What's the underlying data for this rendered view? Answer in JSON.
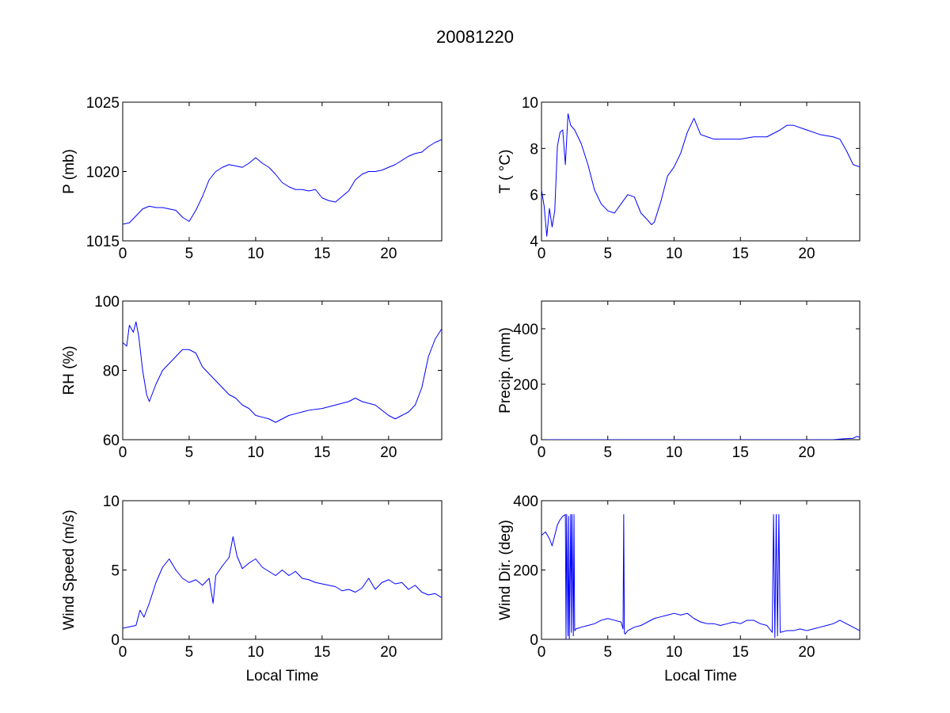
{
  "title": "20081220",
  "colors": {
    "series": "#0000ff",
    "axes": "#000000",
    "background": "#ffffff"
  },
  "chart_data": [
    {
      "type": "line",
      "panel": "top-left",
      "title": "",
      "xlabel": "",
      "ylabel": "P (mb)",
      "xlim": [
        0,
        24
      ],
      "ylim": [
        1015,
        1025
      ],
      "xticks": [
        0,
        5,
        10,
        15,
        20
      ],
      "xtick_labels": [
        "0",
        "5",
        "10",
        "15",
        "20"
      ],
      "yticks": [
        1015,
        1020,
        1025
      ],
      "ytick_labels": [
        "1015",
        "1020",
        "1025"
      ],
      "series": [
        {
          "name": "P",
          "x": [
            0,
            0.5,
            1,
            1.5,
            2,
            2.5,
            3,
            3.5,
            4,
            4.5,
            5,
            5.5,
            6,
            6.5,
            7,
            7.5,
            8,
            8.5,
            9,
            9.5,
            10,
            10.5,
            11,
            11.5,
            12,
            12.5,
            13,
            13.5,
            14,
            14.5,
            15,
            15.5,
            16,
            16.5,
            17,
            17.5,
            18,
            18.5,
            19,
            19.5,
            20,
            20.5,
            21,
            21.5,
            22,
            22.5,
            23,
            23.5,
            24
          ],
          "y": [
            1016.2,
            1016.3,
            1016.8,
            1017.3,
            1017.5,
            1017.4,
            1017.4,
            1017.3,
            1017.2,
            1016.7,
            1016.4,
            1017.2,
            1018.2,
            1019.4,
            1020.0,
            1020.3,
            1020.5,
            1020.4,
            1020.3,
            1020.6,
            1021.0,
            1020.6,
            1020.3,
            1019.8,
            1019.2,
            1018.9,
            1018.7,
            1018.7,
            1018.6,
            1018.7,
            1018.1,
            1017.9,
            1017.8,
            1018.2,
            1018.6,
            1019.4,
            1019.8,
            1020.0,
            1020.0,
            1020.1,
            1020.3,
            1020.5,
            1020.8,
            1021.1,
            1021.3,
            1021.4,
            1021.8,
            1022.1,
            1022.3
          ]
        }
      ]
    },
    {
      "type": "line",
      "panel": "top-right",
      "title": "",
      "xlabel": "",
      "ylabel": "T ( °C)",
      "xlim": [
        0,
        24
      ],
      "ylim": [
        4,
        10
      ],
      "xticks": [
        0,
        5,
        10,
        15,
        20
      ],
      "xtick_labels": [
        "0",
        "5",
        "10",
        "15",
        "20"
      ],
      "yticks": [
        4,
        6,
        8,
        10
      ],
      "ytick_labels": [
        "4",
        "6",
        "8",
        "10"
      ],
      "series": [
        {
          "name": "T",
          "x": [
            0,
            0.2,
            0.4,
            0.6,
            0.8,
            1,
            1.2,
            1.4,
            1.6,
            1.8,
            2,
            2.2,
            2.5,
            3,
            3.5,
            4,
            4.5,
            5,
            5.5,
            6,
            6.5,
            7,
            7.5,
            8,
            8.3,
            8.5,
            9,
            9.5,
            10,
            10.5,
            11,
            11.5,
            12,
            12.5,
            13,
            14,
            15,
            16,
            17,
            18,
            18.5,
            19,
            20,
            21,
            22,
            22.5,
            23,
            23.5,
            24
          ],
          "y": [
            6.2,
            5.5,
            4.2,
            5.4,
            4.6,
            5.3,
            8.1,
            8.7,
            8.8,
            7.3,
            9.5,
            9.0,
            8.8,
            8.2,
            7.3,
            6.2,
            5.6,
            5.3,
            5.2,
            5.6,
            6.0,
            5.9,
            5.2,
            4.9,
            4.7,
            4.8,
            5.7,
            6.8,
            7.2,
            7.8,
            8.7,
            9.3,
            8.6,
            8.5,
            8.4,
            8.4,
            8.4,
            8.5,
            8.5,
            8.8,
            9.0,
            9.0,
            8.8,
            8.6,
            8.5,
            8.4,
            7.9,
            7.3,
            7.2
          ]
        }
      ]
    },
    {
      "type": "line",
      "panel": "middle-left",
      "title": "",
      "xlabel": "",
      "ylabel": "RH (%)",
      "xlim": [
        0,
        24
      ],
      "ylim": [
        60,
        100
      ],
      "xticks": [
        0,
        5,
        10,
        15,
        20
      ],
      "xtick_labels": [
        "0",
        "5",
        "10",
        "15",
        "20"
      ],
      "yticks": [
        60,
        80,
        100
      ],
      "ytick_labels": [
        "60",
        "80",
        "100"
      ],
      "series": [
        {
          "name": "RH",
          "x": [
            0,
            0.3,
            0.5,
            0.8,
            1,
            1.2,
            1.5,
            1.8,
            2,
            2.5,
            3,
            3.5,
            4,
            4.5,
            5,
            5.5,
            6,
            6.5,
            7,
            7.5,
            8,
            8.5,
            9,
            9.5,
            10,
            10.5,
            11,
            11.5,
            12,
            12.5,
            13,
            14,
            15,
            16,
            17,
            17.5,
            18,
            19,
            20,
            20.5,
            21,
            21.5,
            22,
            22.5,
            23,
            23.5,
            24
          ],
          "y": [
            88,
            87,
            93,
            91,
            94,
            90,
            80,
            73,
            71,
            76,
            80,
            82,
            84,
            86,
            86,
            85,
            81,
            79,
            77,
            75,
            73,
            72,
            70,
            69,
            67,
            66.5,
            66,
            65,
            66,
            67,
            67.5,
            68.5,
            69,
            70,
            71,
            72,
            71,
            70,
            67,
            66,
            67,
            68,
            70,
            75,
            84,
            89,
            92
          ]
        }
      ]
    },
    {
      "type": "line",
      "panel": "middle-right",
      "title": "",
      "xlabel": "",
      "ylabel": "Precip. (mm)",
      "xlim": [
        0,
        24
      ],
      "ylim": [
        0,
        500
      ],
      "xticks": [
        0,
        5,
        10,
        15,
        20
      ],
      "xtick_labels": [
        "0",
        "5",
        "10",
        "15",
        "20"
      ],
      "yticks": [
        0,
        200,
        400
      ],
      "ytick_labels": [
        "0",
        "200",
        "400"
      ],
      "series": [
        {
          "name": "Precip",
          "x": [
            0,
            22,
            22.5,
            23,
            23.5,
            23.8,
            24
          ],
          "y": [
            0,
            0,
            2,
            4,
            5,
            12,
            8
          ]
        }
      ]
    },
    {
      "type": "line",
      "panel": "bottom-left",
      "title": "",
      "xlabel": "Local Time",
      "ylabel": "Wind Speed (m/s)",
      "xlim": [
        0,
        24
      ],
      "ylim": [
        0,
        10
      ],
      "xticks": [
        0,
        5,
        10,
        15,
        20
      ],
      "xtick_labels": [
        "0",
        "5",
        "10",
        "15",
        "20"
      ],
      "yticks": [
        0,
        5,
        10
      ],
      "ytick_labels": [
        "0",
        "5",
        "10"
      ],
      "series": [
        {
          "name": "Wind Speed",
          "x": [
            0,
            0.5,
            1,
            1.3,
            1.6,
            2,
            2.5,
            3,
            3.5,
            4,
            4.5,
            5,
            5.5,
            6,
            6.5,
            6.8,
            7,
            7.5,
            8,
            8.3,
            8.6,
            9,
            9.5,
            10,
            10.5,
            11,
            11.5,
            12,
            12.5,
            13,
            13.5,
            14,
            14.5,
            15,
            15.5,
            16,
            16.5,
            17,
            17.5,
            18,
            18.5,
            19,
            19.5,
            20,
            20.5,
            21,
            21.5,
            22,
            22.5,
            23,
            23.5,
            24
          ],
          "y": [
            0.8,
            0.9,
            1.0,
            2.1,
            1.6,
            2.6,
            4.1,
            5.2,
            5.8,
            5.0,
            4.4,
            4.1,
            4.3,
            3.9,
            4.4,
            2.6,
            4.6,
            5.3,
            5.9,
            7.4,
            6.0,
            5.1,
            5.5,
            5.8,
            5.2,
            4.9,
            4.6,
            5.0,
            4.6,
            4.9,
            4.4,
            4.3,
            4.1,
            4.0,
            3.9,
            3.8,
            3.5,
            3.6,
            3.4,
            3.7,
            4.4,
            3.6,
            4.1,
            4.3,
            4.0,
            4.1,
            3.6,
            3.9,
            3.4,
            3.2,
            3.3,
            3.0
          ]
        }
      ]
    },
    {
      "type": "line",
      "panel": "bottom-right",
      "title": "",
      "xlabel": "Local Time",
      "ylabel": "Wind Dir. (deg)",
      "xlim": [
        0,
        24
      ],
      "ylim": [
        0,
        400
      ],
      "xticks": [
        0,
        5,
        10,
        15,
        20
      ],
      "xtick_labels": [
        "0",
        "5",
        "10",
        "15",
        "20"
      ],
      "yticks": [
        0,
        200,
        400
      ],
      "ytick_labels": [
        "0",
        "200",
        "400"
      ],
      "series": [
        {
          "name": "Wind Dir",
          "x": [
            0,
            0.3,
            0.6,
            0.8,
            1.0,
            1.2,
            1.4,
            1.6,
            1.8,
            1.85,
            1.9,
            2.0,
            2.05,
            2.1,
            2.2,
            2.25,
            2.3,
            2.4,
            2.45,
            2.5,
            2.6,
            3,
            3.5,
            4,
            4.5,
            5,
            5.5,
            6,
            6.15,
            6.2,
            6.25,
            6.3,
            6.5,
            7,
            7.5,
            8,
            8.5,
            9,
            9.5,
            10,
            10.5,
            11,
            11.5,
            12,
            12.5,
            13,
            13.5,
            14,
            14.5,
            15,
            15.5,
            16,
            16.5,
            17,
            17.4,
            17.5,
            17.6,
            17.7,
            17.8,
            17.9,
            18,
            18.5,
            19,
            19.5,
            20,
            20.5,
            21,
            21.5,
            22,
            22.5,
            23,
            23.5,
            24
          ],
          "y": [
            300,
            310,
            290,
            270,
            300,
            330,
            345,
            355,
            360,
            0,
            360,
            10,
            355,
            0,
            360,
            20,
            360,
            10,
            360,
            25,
            30,
            35,
            40,
            45,
            55,
            60,
            55,
            50,
            30,
            360,
            20,
            15,
            25,
            35,
            40,
            50,
            60,
            65,
            70,
            75,
            70,
            75,
            60,
            50,
            45,
            45,
            40,
            45,
            50,
            45,
            55,
            55,
            45,
            40,
            20,
            360,
            5,
            360,
            10,
            360,
            20,
            25,
            25,
            30,
            25,
            30,
            35,
            40,
            45,
            55,
            45,
            35,
            25
          ]
        }
      ]
    }
  ]
}
